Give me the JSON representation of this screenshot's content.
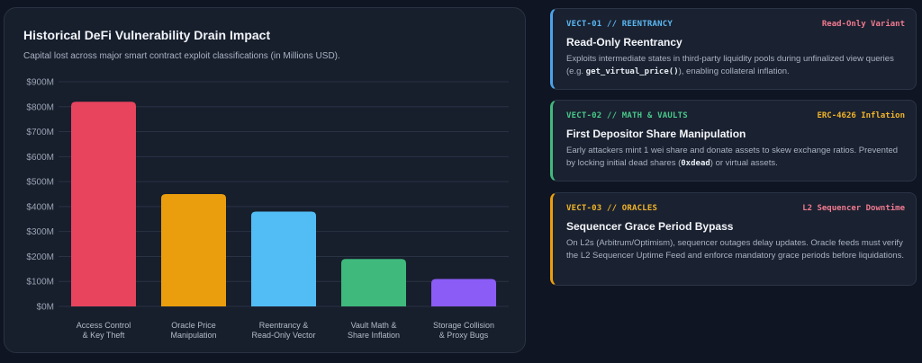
{
  "chart": {
    "title": "Historical DeFi Vulnerability Drain Impact",
    "subtitle": "Capital lost across major smart contract exploit classifications (in Millions USD)."
  },
  "chart_data": {
    "type": "bar",
    "title": "Historical DeFi Vulnerability Drain Impact",
    "subtitle": "Capital lost across major smart contract exploit classifications (in Millions USD).",
    "xlabel": "",
    "ylabel": "",
    "ylim": [
      0,
      900
    ],
    "yticks": [
      0,
      100,
      200,
      300,
      400,
      500,
      600,
      700,
      800,
      900
    ],
    "ytick_labels": [
      "$0M",
      "$100M",
      "$200M",
      "$300M",
      "$400M",
      "$500M",
      "$600M",
      "$700M",
      "$800M",
      "$900M"
    ],
    "grid": true,
    "legend": "none",
    "categories": [
      [
        "Access Control",
        "& Key Theft"
      ],
      [
        "Oracle Price",
        "Manipulation"
      ],
      [
        "Reentrancy &",
        "Read-Only Vector"
      ],
      [
        "Vault Math &",
        "Share Inflation"
      ],
      [
        "Storage Collision",
        "& Proxy Bugs"
      ]
    ],
    "values": [
      820,
      450,
      380,
      190,
      110
    ],
    "colors": [
      "#e8445e",
      "#eb9e0d",
      "#52bdf5",
      "#3fb97c",
      "#8b5cf6"
    ]
  },
  "cards": [
    {
      "tag": "VECT-01 // REENTRANCY",
      "variant": "Read-Only Variant",
      "title": "Read-Only Reentrancy",
      "desc_parts": [
        "Exploits intermediate states in third-party liquidity pools during unfinalized view queries (e.g. ",
        "get_virtual_price()",
        "), enabling collateral inflation."
      ],
      "tag_color": "#5ab8f2",
      "variant_color": "#f07a8f",
      "accent": "#4aa3e8"
    },
    {
      "tag": "VECT-02 // MATH & VAULTS",
      "variant": "ERC-4626 Inflation",
      "title": "First Depositor Share Manipulation",
      "desc_parts": [
        "Early attackers mint 1 wei share and donate assets to skew exchange ratios. Prevented by locking initial dead shares (",
        "0xdead",
        ") or virtual assets."
      ],
      "tag_color": "#48c98a",
      "variant_color": "#f0b429",
      "accent": "#3fb97c"
    },
    {
      "tag": "VECT-03 // ORACLES",
      "variant": "L2 Sequencer Downtime",
      "title": "Sequencer Grace Period Bypass",
      "desc_parts": [
        "On L2s (Arbitrum/Optimism), sequencer outages delay updates. Oracle feeds must verify the L2 Sequencer Uptime Feed and enforce mandatory grace periods before liquidations."
      ],
      "tag_color": "#f0b429",
      "variant_color": "#f07a8f",
      "accent": "#eb9e0d"
    }
  ]
}
